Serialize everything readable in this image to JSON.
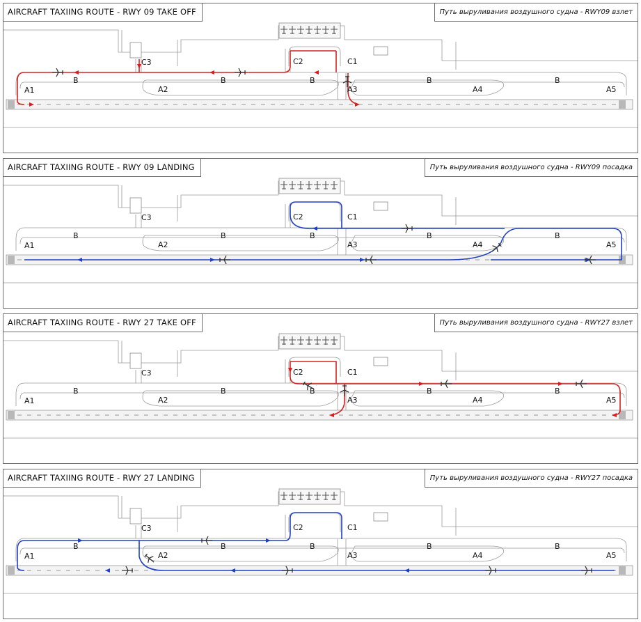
{
  "panels": [
    {
      "title": "AIRCRAFT TAXIING ROUTE - RWY 09 TAKE OFF",
      "title_ru": "Путь выруливания воздушного судна - RWY09 взлет",
      "route_color": "#d62020"
    },
    {
      "title": "AIRCRAFT TAXIING ROUTE - RWY 09 LANDING",
      "title_ru": "Путь выруливания воздушного судна - RWY09 посадка",
      "route_color": "#1f3fc4"
    },
    {
      "title": "AIRCRAFT TAXIING ROUTE - RWY 27 TAKE OFF",
      "title_ru": "Путь выруливания воздушного судна - RWY27 взлет",
      "route_color": "#d62020"
    },
    {
      "title": "AIRCRAFT TAXIING ROUTE - RWY 27 LANDING",
      "title_ru": "Путь выруливания воздушного судна - RWY27 посадка",
      "route_color": "#1f3fc4"
    }
  ],
  "labels": {
    "a1": "A1",
    "a2": "A2",
    "a3": "A3",
    "a4": "A4",
    "a5": "A5",
    "b": "B",
    "c1": "C1",
    "c2": "C2",
    "c3": "C3"
  },
  "icons": {
    "aircraft": "aircraft-icon",
    "arrow": "direction-arrow-icon"
  }
}
